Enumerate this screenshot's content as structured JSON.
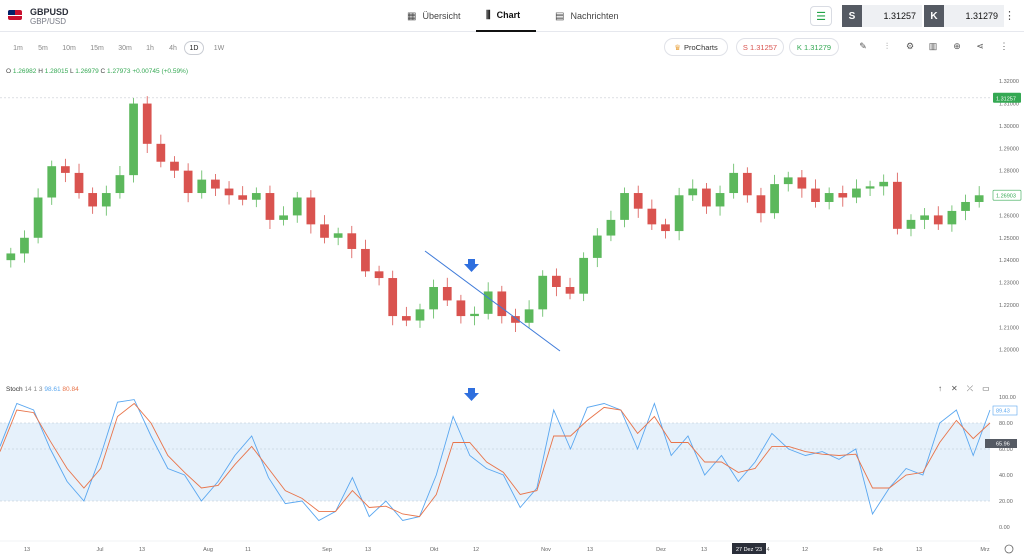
{
  "header": {
    "symbol": "GBPUSD",
    "symbol_sub": "GBP/USD",
    "tabs": [
      {
        "label": "Übersicht",
        "icon": "grid-icon"
      },
      {
        "label": "Chart",
        "icon": "candles-icon"
      },
      {
        "label": "Nachrichten",
        "icon": "news-icon"
      }
    ],
    "sell": {
      "key": "S",
      "price": "1.31257"
    },
    "buy": {
      "key": "K",
      "price": "1.31279"
    }
  },
  "toolbar": {
    "timeframes": [
      "1m",
      "5m",
      "10m",
      "15m",
      "30m",
      "1h",
      "4h",
      "1D",
      "1W"
    ],
    "active_timeframe": "1D",
    "prochart_label": "ProCharts",
    "sell_label": "S 1.31257",
    "buy_label": "K 1.31279",
    "icons": [
      "pencil-icon",
      "indicators-icon",
      "settings-icon",
      "bar-chart-icon",
      "add-icon",
      "share-icon",
      "more-icon"
    ]
  },
  "ohlc": {
    "o_label": "O",
    "o": "1.26982",
    "h_label": "H",
    "h": "1.28015",
    "l_label": "L",
    "l": "1.26979",
    "c_label": "C",
    "c": "1.27973",
    "change": "+0.00745 (+0.59%)"
  },
  "stoch": {
    "name": "Stoch",
    "params": "14 1 3",
    "k_value": "98.61",
    "d_value": "80.84",
    "badge_k": "89.43",
    "badge_d": "65.96"
  },
  "colors": {
    "up": "#5cb85c",
    "down": "#d9534f",
    "k_line": "#5aa7f0",
    "d_line": "#e8744a",
    "band": "#e6f1fb",
    "arrow": "#2f6fde",
    "trendline": "#3f7bd9"
  },
  "chart_data": [
    {
      "type": "candlestick",
      "title": "GBPUSD 1D",
      "y_ticks": [
        "1.32000",
        "1.31000",
        "1.30000",
        "1.29000",
        "1.28000",
        "1.27000",
        "1.26000",
        "1.25000",
        "1.24000",
        "1.23000",
        "1.22000",
        "1.21000",
        "1.20000"
      ],
      "current_price_label": "1.31257",
      "last_price_label": "1.26903",
      "x_ticks": [
        "13",
        "Jul",
        "13",
        "Aug",
        "11",
        "Sep",
        "13",
        "Okt",
        "12",
        "Nov",
        "13",
        "Dez",
        "13",
        "27 Dez '23",
        "4",
        "12",
        "Feb",
        "13",
        "Mrz"
      ],
      "series_close_approx": [
        1.243,
        1.25,
        1.268,
        1.282,
        1.279,
        1.27,
        1.264,
        1.27,
        1.278,
        1.31,
        1.292,
        1.284,
        1.28,
        1.27,
        1.276,
        1.272,
        1.269,
        1.267,
        1.27,
        1.258,
        1.26,
        1.268,
        1.256,
        1.25,
        1.252,
        1.245,
        1.235,
        1.232,
        1.215,
        1.213,
        1.218,
        1.228,
        1.222,
        1.215,
        1.216,
        1.226,
        1.215,
        1.212,
        1.218,
        1.233,
        1.228,
        1.225,
        1.241,
        1.251,
        1.258,
        1.27,
        1.263,
        1.256,
        1.253,
        1.269,
        1.272,
        1.264,
        1.27,
        1.279,
        1.269,
        1.261,
        1.274,
        1.277,
        1.272,
        1.266,
        1.27,
        1.268,
        1.272,
        1.273,
        1.275,
        1.254,
        1.258,
        1.26,
        1.256,
        1.262,
        1.266,
        1.269
      ],
      "annotations": [
        "down-arrow marker near Oct 12",
        "descending trendline Sep to Nov"
      ]
    },
    {
      "type": "line",
      "title": "Stoch 14 1 3",
      "y_ticks": [
        "100.00",
        "80.00",
        "60.00",
        "40.00",
        "20.00",
        "0.00"
      ],
      "ylim": [
        0,
        100
      ],
      "band": [
        20,
        80
      ],
      "series": [
        {
          "name": "%K",
          "values": [
            62,
            95,
            90,
            60,
            35,
            20,
            55,
            96,
            98,
            70,
            45,
            40,
            20,
            35,
            55,
            70,
            38,
            18,
            20,
            5,
            12,
            38,
            8,
            20,
            5,
            8,
            40,
            85,
            55,
            45,
            40,
            15,
            30,
            90,
            60,
            92,
            95,
            90,
            60,
            95,
            55,
            70,
            40,
            55,
            35,
            50,
            72,
            60,
            55,
            58,
            52,
            60,
            10,
            30,
            45,
            40,
            80,
            90,
            55,
            90
          ]
        },
        {
          "name": "%D",
          "values": [
            58,
            90,
            88,
            66,
            45,
            30,
            45,
            85,
            95,
            80,
            55,
            42,
            30,
            32,
            48,
            62,
            45,
            28,
            22,
            12,
            12,
            28,
            15,
            16,
            10,
            8,
            25,
            65,
            65,
            50,
            42,
            25,
            28,
            70,
            70,
            82,
            92,
            90,
            72,
            85,
            65,
            65,
            50,
            50,
            42,
            45,
            62,
            62,
            58,
            56,
            55,
            56,
            30,
            30,
            40,
            42,
            65,
            82,
            68,
            80
          ]
        }
      ]
    }
  ]
}
